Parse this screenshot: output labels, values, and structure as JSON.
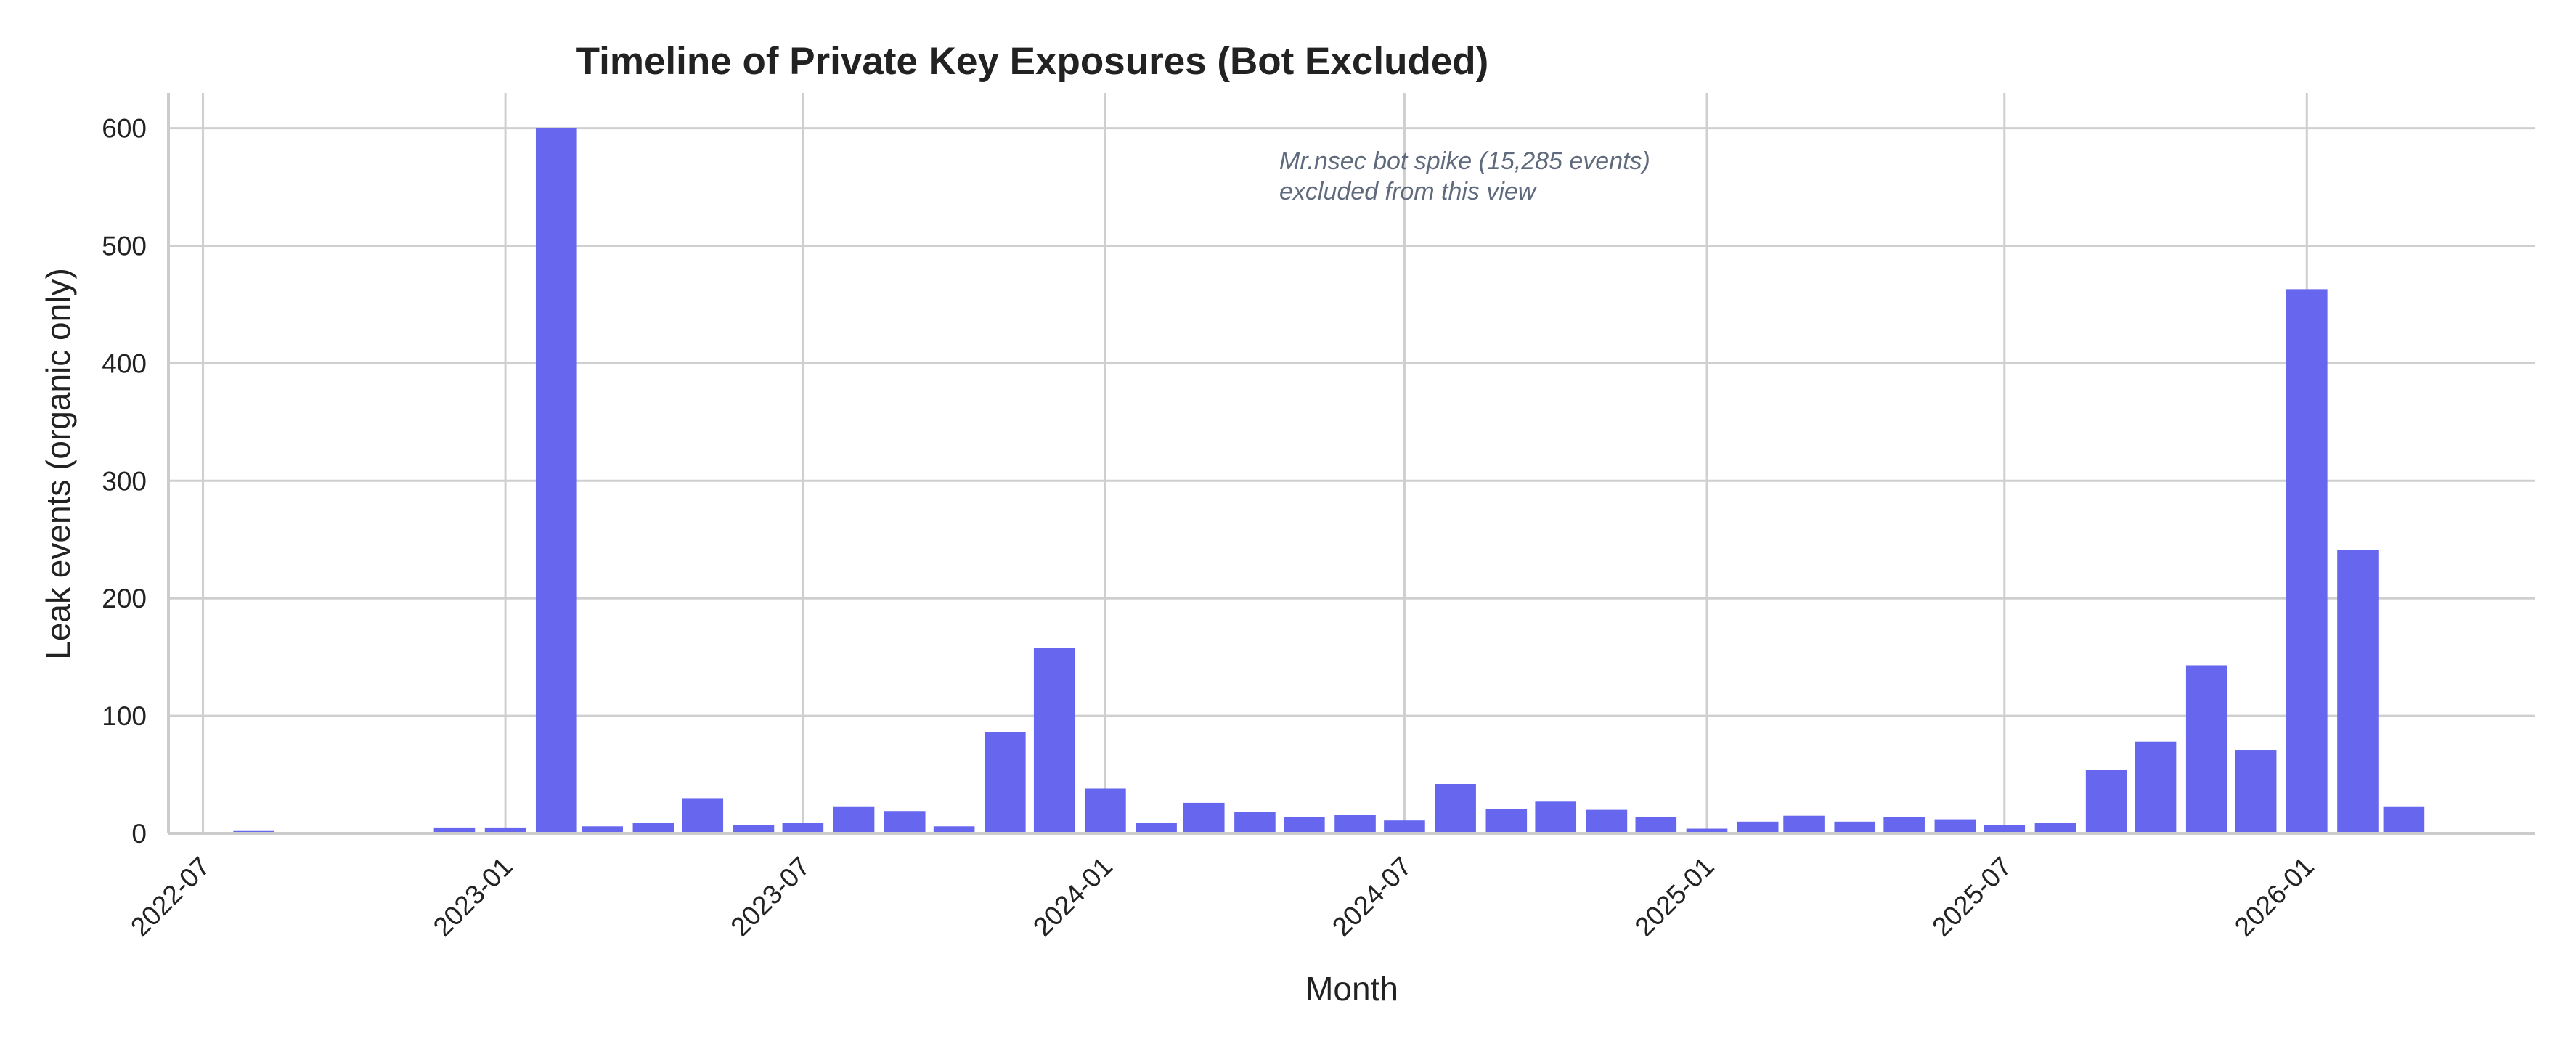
{
  "chart_data": {
    "type": "bar",
    "title": "Timeline of Private Key Exposures (Bot Excluded)",
    "xlabel": "Month",
    "ylabel": "Leak events (organic only)",
    "ylim": [
      0,
      630
    ],
    "yticks": [
      0,
      100,
      200,
      300,
      400,
      500,
      600
    ],
    "xlim": [
      "2022-06-10",
      "2026-05-20"
    ],
    "xticks": [
      "2022-07",
      "2023-01",
      "2023-07",
      "2024-01",
      "2024-07",
      "2025-01",
      "2025-07",
      "2026-01"
    ],
    "grid": true,
    "bar_color": "#6666ee",
    "annotation": {
      "lines": [
        "Mr.nsec bot spike (15,285 events)",
        "excluded from this view"
      ]
    },
    "x": [
      "2022-07",
      "2022-08",
      "2022-09",
      "2022-10",
      "2022-11",
      "2022-12",
      "2023-01",
      "2023-02",
      "2023-03",
      "2023-04",
      "2023-05",
      "2023-06",
      "2023-07",
      "2023-08",
      "2023-09",
      "2023-10",
      "2023-11",
      "2023-12",
      "2024-01",
      "2024-02",
      "2024-03",
      "2024-04",
      "2024-05",
      "2024-06",
      "2024-07",
      "2024-08",
      "2024-09",
      "2024-10",
      "2024-11",
      "2024-12",
      "2025-01",
      "2025-02",
      "2025-03",
      "2025-04",
      "2025-05",
      "2025-06",
      "2025-07",
      "2025-08",
      "2025-09",
      "2025-10",
      "2025-11",
      "2025-12",
      "2026-01",
      "2026-02",
      "2026-03"
    ],
    "values": [
      0,
      2,
      1,
      1,
      1,
      5,
      5,
      600,
      6,
      9,
      30,
      7,
      9,
      23,
      19,
      6,
      86,
      158,
      38,
      9,
      26,
      18,
      14,
      16,
      11,
      42,
      21,
      27,
      20,
      14,
      4,
      10,
      15,
      10,
      14,
      12,
      7,
      9,
      54,
      78,
      143,
      71,
      463,
      241,
      23
    ]
  }
}
